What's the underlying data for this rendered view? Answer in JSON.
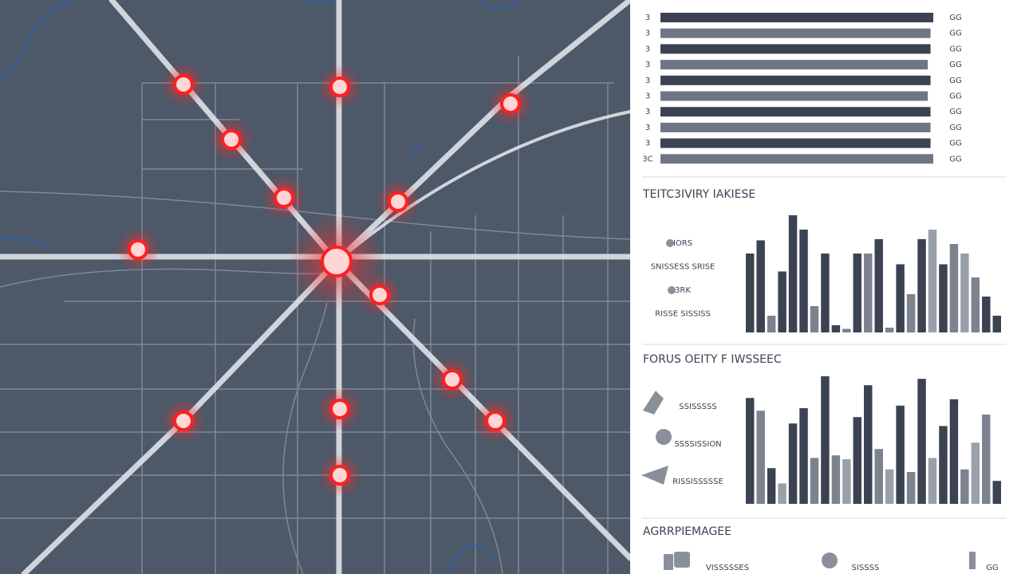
{
  "hbars": {
    "labels": [
      "3",
      "3",
      "3",
      "3",
      "3",
      "3",
      "3",
      "3",
      "3",
      "3C"
    ],
    "values": [
      100,
      99,
      99,
      98,
      99,
      98,
      99,
      99,
      99,
      100
    ],
    "value_labels": [
      "GG",
      "GG",
      "GG",
      "GG",
      "GG",
      "GG",
      "GG",
      "GG",
      "GG",
      "GG"
    ],
    "xlim": [
      0,
      100
    ]
  },
  "chart1": {
    "title": "TEITC3IVIRY IAKIESE",
    "legend": [
      "IORS",
      "SNISSESS SRISE",
      "3RK",
      "RISSE SISSISS"
    ],
    "values": [
      66,
      77,
      14,
      51,
      98,
      86,
      22,
      66,
      6,
      3,
      66,
      66,
      78,
      4,
      57,
      32,
      78,
      86,
      57,
      74,
      66,
      46,
      30,
      14
    ],
    "bar_colors": [
      "#3b4252",
      "#3b4252",
      "#7c828e",
      "#3b4252",
      "#3b4252",
      "#3b4252",
      "#7c828e",
      "#3b4252",
      "#3b4252",
      "#7c828e",
      "#3b4252",
      "#7c828e",
      "#3b4252",
      "#7c828e",
      "#3b4252",
      "#7c828e",
      "#3b4252",
      "#9aa0aa",
      "#3b4252",
      "#7c828e",
      "#9aa0aa",
      "#7c828e",
      "#3b4252",
      "#3b4252"
    ],
    "ylim": [
      0,
      100
    ]
  },
  "chart2": {
    "title": "FORUS OEITY F IWSSEEC",
    "legend": [
      "SSISSSSS",
      "SSSSISSION",
      "RISSISSSSSE"
    ],
    "values": [
      83,
      73,
      28,
      16,
      63,
      75,
      36,
      100,
      38,
      35,
      68,
      93,
      43,
      27,
      77,
      25,
      98,
      36,
      61,
      82,
      27,
      48,
      70,
      18
    ],
    "bar_colors": [
      "#3b4252",
      "#7c828e",
      "#3b4252",
      "#9aa0aa",
      "#3b4252",
      "#3b4252",
      "#7c828e",
      "#3b4252",
      "#7c828e",
      "#9aa0aa",
      "#3b4252",
      "#3b4252",
      "#7c828e",
      "#9aa0aa",
      "#3b4252",
      "#7c828e",
      "#3b4252",
      "#9aa0aa",
      "#3b4252",
      "#3b4252",
      "#7c828e",
      "#9aa0aa",
      "#7c828e",
      "#3b4252"
    ],
    "ylim": [
      0,
      100
    ]
  },
  "footer": {
    "title": "AGRRPIEMAGEE",
    "items": [
      "VISSSSSES",
      "SISSSS",
      "GG"
    ]
  }
}
